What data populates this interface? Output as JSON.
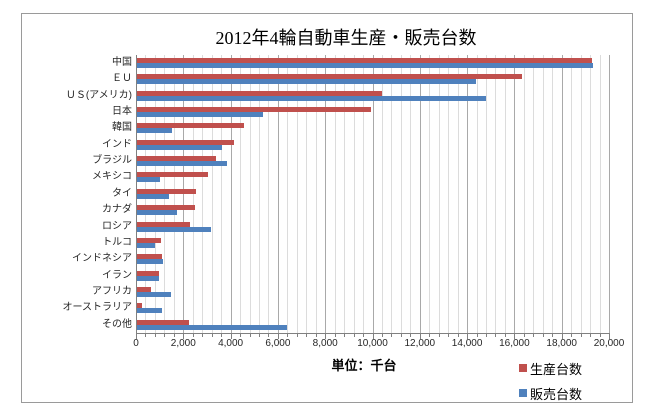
{
  "colors": {
    "production": "#c0504d",
    "sales": "#4f81bd",
    "grid_minor": "#dcdcdc",
    "grid_major": "#a9a9a9",
    "axis": "#808080",
    "frame_border": "#9a9a9a",
    "text": "#262626"
  },
  "chart_data": {
    "type": "bar",
    "orientation": "horizontal",
    "title": "2012年4輪自動車生産・販売台数",
    "xlabel": "単位：千台",
    "xlim": [
      0,
      20000
    ],
    "major_unit": 2000,
    "minor_unit": 400,
    "grid": {
      "vertical_minor": true,
      "vertical_major": true
    },
    "legend_position": "bottom-right",
    "x_tick_labels": [
      "0",
      "2,000",
      "4,000",
      "6,000",
      "8,000",
      "10,000",
      "12,000",
      "14,000",
      "16,000",
      "18,000",
      "20,000"
    ],
    "categories": [
      "中国",
      "ＥＵ",
      "ＵＳ(アメリカ)",
      "日本",
      "韓国",
      "インド",
      "ブラジル",
      "メキシコ",
      "タイ",
      "カナダ",
      "ロシア",
      "トルコ",
      "インドネシア",
      "イラン",
      "アフリカ",
      "オーストラリア",
      "その他"
    ],
    "series": [
      {
        "name": "生産台数",
        "color": "#c0504d",
        "values": [
          19270,
          16320,
          10400,
          9940,
          4560,
          4150,
          3380,
          3040,
          2540,
          2490,
          2280,
          1070,
          1080,
          990,
          630,
          250,
          2240
        ]
      },
      {
        "name": "販売台数",
        "color": "#4f81bd",
        "values": [
          19310,
          14380,
          14800,
          5370,
          1530,
          3640,
          3850,
          1010,
          1400,
          1730,
          3170,
          800,
          1160,
          990,
          1480,
          1110,
          6380
        ]
      }
    ]
  }
}
